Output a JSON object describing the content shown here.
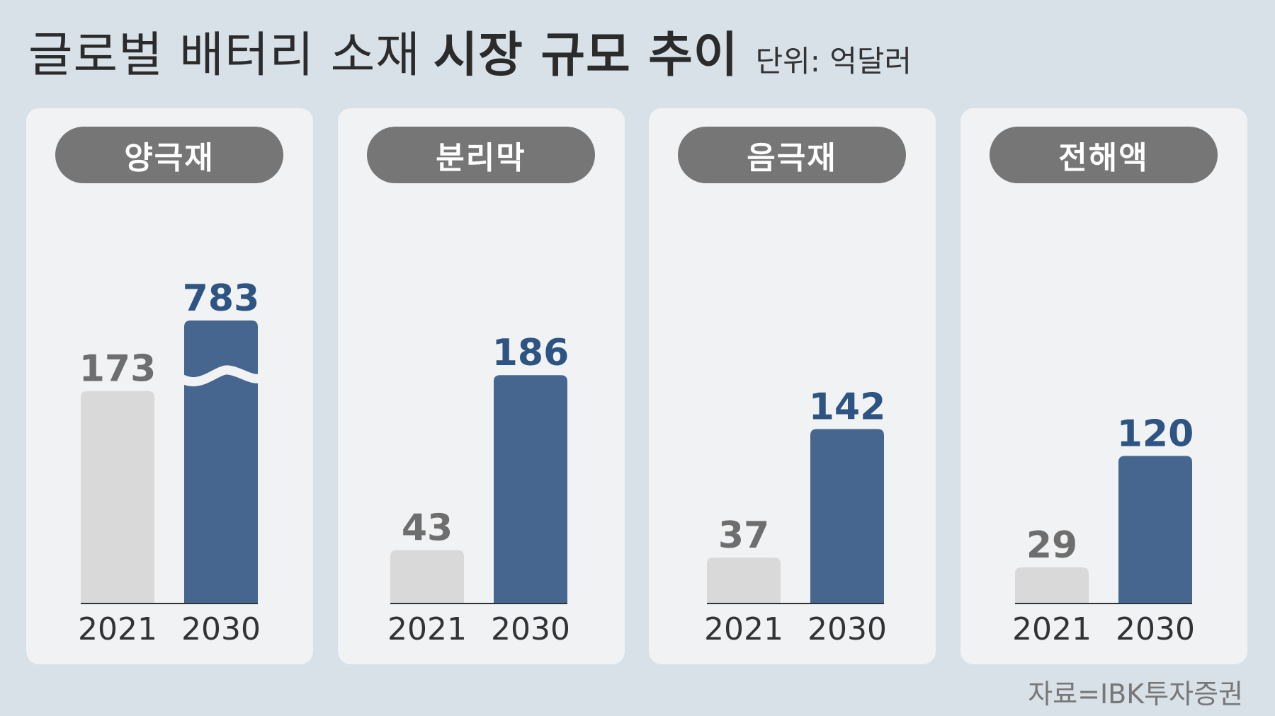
{
  "title": {
    "light": "글로벌 배터리 소재",
    "bold": "시장 규모 추이",
    "unit": "단위: 억달러"
  },
  "source": "자료=IBK투자증권",
  "colors": {
    "background": "#d8e0e8",
    "panel": "#f0f2f4",
    "pill": "#767676",
    "bar_2021": "#d9d9d9",
    "bar_2030": "#46668f",
    "label_2021": "#6e6e6e",
    "label_2030": "#2d5482",
    "axis": "#333333"
  },
  "chart_data": [
    {
      "type": "bar",
      "title": "양극재",
      "categories": [
        "2021",
        "2030"
      ],
      "values": [
        173,
        783
      ],
      "value_labels": [
        "173",
        "783"
      ],
      "axis_break": true
    },
    {
      "type": "bar",
      "title": "분리막",
      "categories": [
        "2021",
        "2030"
      ],
      "values": [
        43,
        186
      ],
      "value_labels": [
        "43",
        "186"
      ]
    },
    {
      "type": "bar",
      "title": "음극재",
      "categories": [
        "2021",
        "2030"
      ],
      "values": [
        37,
        142
      ],
      "value_labels": [
        "37",
        "142"
      ]
    },
    {
      "type": "bar",
      "title": "전해액",
      "categories": [
        "2021",
        "2030"
      ],
      "values": [
        29,
        120
      ],
      "value_labels": [
        "29",
        "120"
      ]
    }
  ]
}
